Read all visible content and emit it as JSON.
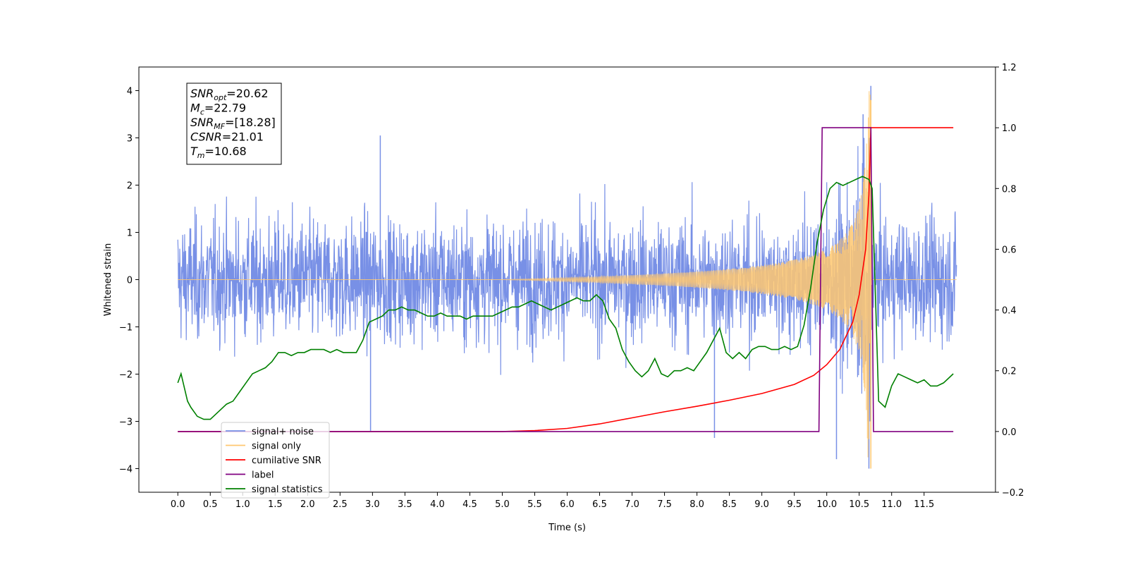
{
  "chart_data": {
    "type": "line",
    "xlabel": "Time (s)",
    "ylabel": "Whitened strain",
    "xlim": [
      -0.6,
      12.6
    ],
    "ylim": [
      -4.5,
      4.5
    ],
    "y2lim": [
      -0.2,
      1.2
    ],
    "grid": false,
    "legend_position": "lower-left",
    "x_ticks": [
      0.0,
      0.5,
      1.0,
      1.5,
      2.0,
      2.5,
      3.0,
      3.5,
      4.0,
      4.5,
      5.0,
      5.5,
      6.0,
      6.5,
      7.0,
      7.5,
      8.0,
      8.5,
      9.0,
      9.5,
      10.0,
      10.5,
      11.0,
      11.5
    ],
    "x_tick_labels": [
      "0.0",
      "0.5",
      "1.0",
      "1.5",
      "2.0",
      "2.5",
      "3.0",
      "3.5",
      "4.0",
      "4.5",
      "5.0",
      "5.5",
      "6.0",
      "6.5",
      "7.0",
      "7.5",
      "8.0",
      "8.5",
      "9.0",
      "9.5",
      "10.0",
      "10.5",
      "11.0",
      "11.5"
    ],
    "y_ticks": [
      4,
      3,
      2,
      1,
      0,
      -1,
      -2,
      -3,
      -4
    ],
    "y_tick_labels": [
      "4",
      "3",
      "2",
      "1",
      "0",
      "−1",
      "−2",
      "−3",
      "−4"
    ],
    "y2_ticks": [
      1.2,
      1.0,
      0.8,
      0.6,
      0.4,
      0.2,
      0.0,
      -0.2
    ],
    "y2_tick_labels": [
      "1.2",
      "1.0",
      "0.8",
      "0.6",
      "0.4",
      "0.2",
      "0.0",
      "−0.2"
    ],
    "info_box": {
      "lines": [
        {
          "sym": "SNR",
          "sub": "opt",
          "val": "=20.62"
        },
        {
          "sym": "M",
          "sub": "c",
          "val": "=22.79"
        },
        {
          "sym": "SNR",
          "sub": "MF",
          "val": "=[18.28]"
        },
        {
          "sym": "CSNR",
          "sub": "",
          "val": "=21.01"
        },
        {
          "sym": "T",
          "sub": "m",
          "val": "=10.68"
        }
      ]
    },
    "legend": [
      {
        "label": "signal+ noise",
        "color": "#7890e6"
      },
      {
        "label": "signal only",
        "color": "#ffc870"
      },
      {
        "label": "cumilative SNR",
        "color": "#ff0000"
      },
      {
        "label": "label",
        "color": "#800080"
      },
      {
        "label": "signal statistics",
        "color": "#008000"
      }
    ],
    "series": [
      {
        "name": "signal+ noise",
        "axis": "left",
        "color": "#7890e6",
        "description_values": {
          "t_start": 0.0,
          "t_end": 12.0,
          "typical_envelope": 1.3,
          "min": -4.0,
          "max": 4.1,
          "notable_spikes": [
            [
              8.27,
              -3.35
            ],
            [
              10.15,
              -3.8
            ],
            [
              10.56,
              3.5
            ],
            [
              10.68,
              4.1
            ],
            [
              10.65,
              -4.0
            ],
            [
              2.97,
              -3.2
            ],
            [
              3.12,
              3.05
            ]
          ]
        }
      },
      {
        "name": "signal only",
        "axis": "left",
        "color": "#ffc870",
        "description_values": {
          "t_start": 0.0,
          "t_end": 12.0,
          "merger_time": 10.68,
          "peak": 3.8,
          "trough": -4.0
        }
      },
      {
        "name": "cumilative SNR",
        "axis": "right",
        "color": "#ff0000",
        "x": [
          0.0,
          5.0,
          5.5,
          6.0,
          6.5,
          7.0,
          7.5,
          8.0,
          8.5,
          9.0,
          9.5,
          9.8,
          10.0,
          10.2,
          10.4,
          10.5,
          10.6,
          10.65,
          10.68,
          10.7,
          11.0,
          11.5,
          11.95
        ],
        "values": [
          0.0,
          0.0,
          0.003,
          0.01,
          0.025,
          0.045,
          0.065,
          0.083,
          0.103,
          0.125,
          0.155,
          0.185,
          0.22,
          0.27,
          0.36,
          0.45,
          0.6,
          0.78,
          1.0,
          1.0,
          1.0,
          1.0,
          1.0
        ]
      },
      {
        "name": "label",
        "axis": "right",
        "color": "#800080",
        "x": [
          0.0,
          9.88,
          9.93,
          10.68,
          10.72,
          11.95
        ],
        "values": [
          0.0,
          0.0,
          1.0,
          1.0,
          0.0,
          0.0
        ]
      },
      {
        "name": "signal statistics",
        "axis": "right",
        "color": "#008000",
        "x": [
          0.0,
          0.05,
          0.15,
          0.2,
          0.3,
          0.4,
          0.5,
          0.55,
          0.65,
          0.75,
          0.85,
          0.95,
          1.05,
          1.15,
          1.25,
          1.35,
          1.45,
          1.55,
          1.65,
          1.75,
          1.85,
          1.95,
          2.05,
          2.15,
          2.25,
          2.35,
          2.45,
          2.55,
          2.65,
          2.75,
          2.85,
          2.95,
          3.05,
          3.15,
          3.25,
          3.35,
          3.45,
          3.55,
          3.65,
          3.75,
          3.85,
          3.95,
          4.05,
          4.15,
          4.25,
          4.35,
          4.45,
          4.55,
          4.65,
          4.75,
          4.85,
          4.95,
          5.05,
          5.15,
          5.25,
          5.35,
          5.45,
          5.55,
          5.65,
          5.75,
          5.85,
          5.95,
          6.05,
          6.15,
          6.25,
          6.35,
          6.45,
          6.55,
          6.65,
          6.75,
          6.85,
          6.95,
          7.05,
          7.15,
          7.25,
          7.35,
          7.45,
          7.55,
          7.65,
          7.75,
          7.85,
          7.95,
          8.05,
          8.15,
          8.25,
          8.35,
          8.45,
          8.55,
          8.65,
          8.75,
          8.85,
          8.95,
          9.05,
          9.15,
          9.25,
          9.35,
          9.45,
          9.55,
          9.65,
          9.75,
          9.85,
          9.95,
          10.05,
          10.15,
          10.25,
          10.35,
          10.45,
          10.55,
          10.65,
          10.7,
          10.8,
          10.9,
          11.0,
          11.1,
          11.2,
          11.3,
          11.4,
          11.5,
          11.6,
          11.7,
          11.8,
          11.95
        ],
        "values": [
          0.16,
          0.19,
          0.1,
          0.08,
          0.05,
          0.04,
          0.04,
          0.05,
          0.07,
          0.09,
          0.1,
          0.13,
          0.16,
          0.19,
          0.2,
          0.21,
          0.23,
          0.26,
          0.26,
          0.25,
          0.26,
          0.26,
          0.27,
          0.27,
          0.27,
          0.26,
          0.27,
          0.26,
          0.26,
          0.26,
          0.3,
          0.36,
          0.37,
          0.38,
          0.4,
          0.4,
          0.41,
          0.4,
          0.4,
          0.39,
          0.38,
          0.38,
          0.39,
          0.38,
          0.38,
          0.38,
          0.37,
          0.38,
          0.38,
          0.38,
          0.38,
          0.39,
          0.4,
          0.41,
          0.41,
          0.42,
          0.43,
          0.42,
          0.41,
          0.4,
          0.41,
          0.42,
          0.43,
          0.44,
          0.43,
          0.43,
          0.45,
          0.43,
          0.37,
          0.34,
          0.27,
          0.23,
          0.2,
          0.18,
          0.2,
          0.24,
          0.19,
          0.18,
          0.2,
          0.2,
          0.21,
          0.2,
          0.23,
          0.26,
          0.3,
          0.34,
          0.26,
          0.24,
          0.26,
          0.24,
          0.27,
          0.28,
          0.28,
          0.27,
          0.27,
          0.28,
          0.27,
          0.28,
          0.35,
          0.47,
          0.62,
          0.73,
          0.8,
          0.82,
          0.81,
          0.82,
          0.83,
          0.84,
          0.83,
          0.8,
          0.1,
          0.08,
          0.15,
          0.19,
          0.18,
          0.17,
          0.16,
          0.17,
          0.15,
          0.15,
          0.16,
          0.19
        ]
      }
    ]
  }
}
